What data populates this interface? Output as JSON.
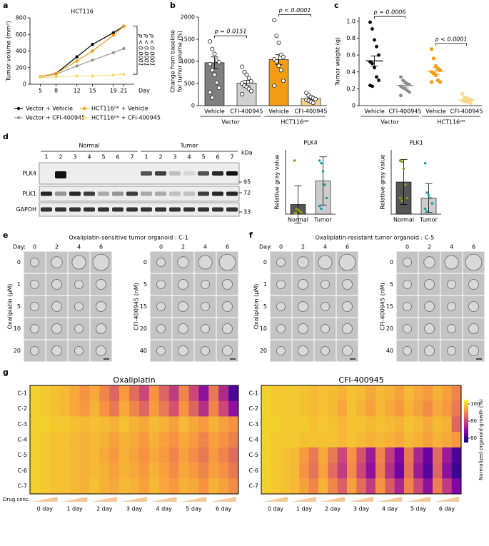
{
  "panel_labels": [
    "a",
    "b",
    "c",
    "d",
    "e",
    "f",
    "g"
  ],
  "chart_data": [
    {
      "type": "line",
      "title": "HCT116",
      "xlabel": "Day",
      "ylabel": "Tumor volume (mm³)",
      "x": [
        5,
        8,
        12,
        15,
        19,
        21
      ],
      "xlim": [
        3,
        23
      ],
      "xticks": [
        5,
        8,
        12,
        15,
        19,
        21
      ],
      "ylim": [
        0,
        800
      ],
      "yticks": [
        0,
        200,
        400,
        600,
        800
      ],
      "series": [
        {
          "name": "Vector + Vehicle",
          "color": "#000000",
          "values": [
            90,
            130,
            330,
            480,
            620,
            700
          ]
        },
        {
          "name": "Vector + CFI-400945",
          "color": "#999999",
          "values": [
            90,
            120,
            220,
            290,
            380,
            430
          ]
        },
        {
          "name": "HCT116ᴼᴿ + Vehicle",
          "color": "#f39c12",
          "values": [
            90,
            130,
            280,
            400,
            590,
            700
          ]
        },
        {
          "name": "HCT116ᴼᴿ + CFI-400945",
          "color": "#f7d774",
          "values": [
            80,
            90,
            100,
            100,
            110,
            120
          ]
        }
      ],
      "annotations": [
        "p < 0.0001",
        "p < 0.0001",
        "p < 0.0001"
      ]
    },
    {
      "type": "bar",
      "ylabel": [
        "Change from baseline",
        "for tumor volume (%)"
      ],
      "categories": [
        "Vehicle",
        "CFI-400945",
        "Vehicle",
        "CFI-400945"
      ],
      "groups": [
        "Vector",
        "HCT116ᴼᴿ"
      ],
      "values": [
        970,
        510,
        1040,
        160
      ],
      "errors": [
        130,
        60,
        110,
        30
      ],
      "colors": [
        "#7f7f7f",
        "#d0d0d0",
        "#f39c12",
        "#f9cf8f"
      ],
      "points": [
        [
          1450,
          1280,
          1170,
          1020,
          980,
          940,
          800,
          700,
          520,
          400,
          300,
          180
        ],
        [
          880,
          760,
          700,
          620,
          550,
          500,
          450,
          420,
          380,
          330,
          260
        ],
        [
          1930,
          1580,
          1420,
          1150,
          1100,
          1050,
          1000,
          900,
          800,
          560,
          450
        ],
        [
          290,
          230,
          200,
          170,
          150,
          130,
          110,
          90,
          60
        ]
      ],
      "ylim": [
        0,
        2000
      ],
      "yticks": [
        0,
        500,
        1000,
        1500,
        2000
      ],
      "annotations": [
        "p = 0.0151",
        "p < 0.0001"
      ]
    },
    {
      "type": "dot",
      "ylabel": "Tumor weight (g)",
      "categories": [
        "Vehicle",
        "CFI-400945",
        "Vehicle",
        "CFI-400945"
      ],
      "groups": [
        "Vector",
        "HCT116ᴼᴿ"
      ],
      "values": [
        0.53,
        0.24,
        0.41,
        0.07
      ],
      "errors": [
        0.06,
        0.02,
        0.04,
        0.01
      ],
      "colors": [
        "#000000",
        "#8c8c8c",
        "#f39c12",
        "#f7d98a"
      ],
      "markers": [
        "circle",
        "circle",
        "square",
        "square"
      ],
      "points": [
        [
          0.99,
          0.91,
          0.78,
          0.7,
          0.6,
          0.52,
          0.5,
          0.45,
          0.34,
          0.3,
          0.24,
          0.23
        ],
        [
          0.34,
          0.3,
          0.28,
          0.26,
          0.25,
          0.23,
          0.21,
          0.2,
          0.18,
          0.16,
          0.12
        ],
        [
          0.67,
          0.56,
          0.47,
          0.44,
          0.42,
          0.4,
          0.38,
          0.36,
          0.3,
          0.28,
          0.28
        ],
        [
          0.14,
          0.1,
          0.09,
          0.08,
          0.07,
          0.06,
          0.05,
          0.05,
          0.04,
          0.03
        ]
      ],
      "ylim": [
        0,
        1.05
      ],
      "yticks": [
        0,
        0.2,
        0.4,
        0.6,
        0.8,
        {
          "value": 1,
          "label": "1.0"
        }
      ],
      "annotations": [
        "p = 0.0006",
        "p < 0.0001"
      ]
    },
    {
      "type": "bar",
      "title": "PLK4",
      "ylabel": "Relative gray value",
      "categories": [
        "Normal",
        "Tumor"
      ],
      "values": [
        0.18,
        0.62
      ],
      "errors": [
        0.35,
        0.45
      ],
      "colors": [
        "#555555",
        "#cccccc"
      ],
      "point_colors": [
        "#8a9a1a",
        "#1aa0a0"
      ],
      "points": [
        [
          1.0,
          0.1,
          0.08,
          0.05,
          0.03,
          0.02,
          0.02
        ],
        [
          1.0,
          0.95,
          0.8,
          0.55,
          0.3,
          0.15,
          0.1
        ]
      ],
      "ylim": [
        0,
        1.2
      ]
    },
    {
      "type": "bar",
      "title": "PLK1",
      "ylabel": "Relative gray value",
      "categories": [
        "Normal",
        "Tumor"
      ],
      "values": [
        0.6,
        0.3
      ],
      "errors": [
        0.42,
        0.27
      ],
      "colors": [
        "#555555",
        "#cccccc"
      ],
      "point_colors": [
        "#8a9a1a",
        "#1aa0a0"
      ],
      "points": [
        [
          1.0,
          0.98,
          0.85,
          0.55,
          0.3,
          0.3,
          0.25
        ],
        [
          0.95,
          0.4,
          0.35,
          0.3,
          0.2,
          0.1,
          0.05
        ]
      ],
      "ylim": [
        0,
        1.2
      ]
    },
    {
      "type": "heatmap",
      "title": "Oxaliplatin",
      "xlabel": "Drug conc.",
      "rows": [
        "C-1",
        "C-2",
        "C-3",
        "C-4",
        "C-5",
        "C-6",
        "C-7"
      ],
      "days": [
        "0 day",
        "1 day",
        "2 day",
        "3 day",
        "4 day",
        "5 day",
        "6 day"
      ],
      "zlim": [
        55,
        105
      ],
      "colors": [
        "#0d0887",
        "#7e03a8",
        "#cc4778",
        "#f89540",
        "#f0f921"
      ],
      "values": [
        [
          100,
          99,
          98,
          97,
          95,
          92,
          95,
          90,
          85,
          93,
          86,
          80,
          92,
          85,
          78,
          90,
          80,
          70,
          88,
          75,
          62
        ],
        [
          100,
          99,
          98,
          97,
          95,
          93,
          96,
          92,
          88,
          95,
          90,
          85,
          93,
          88,
          82,
          92,
          85,
          76,
          90,
          80,
          70
        ],
        [
          100,
          100,
          99,
          99,
          98,
          97,
          98,
          97,
          96,
          98,
          96,
          95,
          97,
          96,
          94,
          97,
          95,
          93,
          96,
          94,
          92
        ],
        [
          100,
          99,
          98,
          98,
          97,
          96,
          97,
          96,
          94,
          96,
          95,
          93,
          96,
          94,
          92,
          95,
          93,
          90,
          94,
          92,
          89
        ],
        [
          100,
          99,
          98,
          98,
          97,
          96,
          97,
          95,
          93,
          96,
          94,
          92,
          95,
          93,
          90,
          94,
          91,
          88,
          93,
          90,
          86
        ],
        [
          100,
          99,
          98,
          98,
          97,
          96,
          97,
          96,
          94,
          96,
          95,
          93,
          96,
          94,
          91,
          95,
          93,
          90,
          94,
          92,
          88
        ],
        [
          100,
          99,
          98,
          98,
          97,
          96,
          98,
          96,
          95,
          97,
          96,
          94,
          97,
          95,
          93,
          96,
          95,
          92,
          96,
          94,
          91
        ]
      ]
    },
    {
      "type": "heatmap",
      "title": "CFI-400945",
      "rows": [
        "C-1",
        "C-2",
        "C-3",
        "C-4",
        "C-5",
        "C-6",
        "C-7"
      ],
      "days": [
        "0 day",
        "1 day",
        "2 day",
        "3 day",
        "4 day",
        "5 day",
        "6 day"
      ],
      "zlim": [
        55,
        105
      ],
      "colors": [
        "#0d0887",
        "#7e03a8",
        "#cc4778",
        "#f89540",
        "#f0f921"
      ],
      "colorbar": {
        "label": "Normalized organoid growth (%)",
        "ticks": [
          60,
          80,
          100
        ]
      },
      "values": [
        [
          100,
          99,
          99,
          99,
          98,
          97,
          98,
          97,
          96,
          98,
          97,
          95,
          97,
          96,
          94,
          97,
          95,
          93,
          96,
          94,
          90
        ],
        [
          100,
          99,
          99,
          99,
          98,
          97,
          98,
          97,
          95,
          98,
          96,
          94,
          97,
          95,
          93,
          96,
          94,
          91,
          95,
          93,
          88
        ],
        [
          100,
          100,
          99,
          99,
          99,
          98,
          99,
          98,
          97,
          98,
          98,
          97,
          98,
          97,
          96,
          98,
          97,
          95,
          97,
          96,
          85
        ],
        [
          100,
          99,
          99,
          99,
          98,
          98,
          98,
          98,
          97,
          98,
          97,
          96,
          97,
          96,
          95,
          97,
          96,
          94,
          96,
          95,
          93
        ],
        [
          100,
          99,
          98,
          97,
          93,
          88,
          95,
          88,
          80,
          92,
          82,
          72,
          90,
          78,
          68,
          88,
          74,
          65,
          86,
          72,
          62
        ],
        [
          100,
          99,
          98,
          97,
          92,
          87,
          94,
          86,
          78,
          91,
          80,
          70,
          89,
          76,
          66,
          87,
          72,
          63,
          85,
          70,
          60
        ],
        [
          100,
          99,
          98,
          97,
          94,
          90,
          96,
          90,
          84,
          94,
          86,
          78,
          92,
          83,
          74,
          90,
          80,
          70,
          89,
          78,
          68
        ]
      ]
    }
  ],
  "western_blot": {
    "groups": [
      "Normal",
      "Tumor"
    ],
    "lanes": [
      "1",
      "2",
      "3",
      "4",
      "5",
      "6",
      "7",
      "1",
      "2",
      "3",
      "4",
      "5",
      "6",
      "7"
    ],
    "proteins": [
      "PLK4",
      "PLK1",
      "GAPDH"
    ],
    "unit": "kDa",
    "markers": [
      "95",
      "72",
      "33"
    ]
  },
  "organoids": [
    {
      "title": "Oxaliplatin-sensitive tumor organoid : C-1",
      "day_label": "Day:",
      "days": [
        "0",
        "2",
        "4",
        "6"
      ],
      "grids": [
        {
          "ylabel": "Oxaliplatin (μM)",
          "rows": [
            "0",
            "1",
            "5",
            "10",
            "20"
          ]
        },
        {
          "ylabel": "CFI-400945 (nM)",
          "rows": [
            "0",
            "5",
            "15",
            "20",
            "40"
          ]
        }
      ]
    },
    {
      "title": "Oxaliplatin-resistant tumor organoid : C-5",
      "day_label": "Day:",
      "days": [
        "0",
        "2",
        "4",
        "6"
      ],
      "grids": [
        {
          "ylabel": "Oxaliplatin (μM)",
          "rows": [
            "0",
            "1",
            "5",
            "10",
            "20"
          ]
        },
        {
          "ylabel": "CFI-400945 (nM)",
          "rows": [
            "0",
            "5",
            "15",
            "20",
            "40"
          ]
        }
      ]
    }
  ]
}
